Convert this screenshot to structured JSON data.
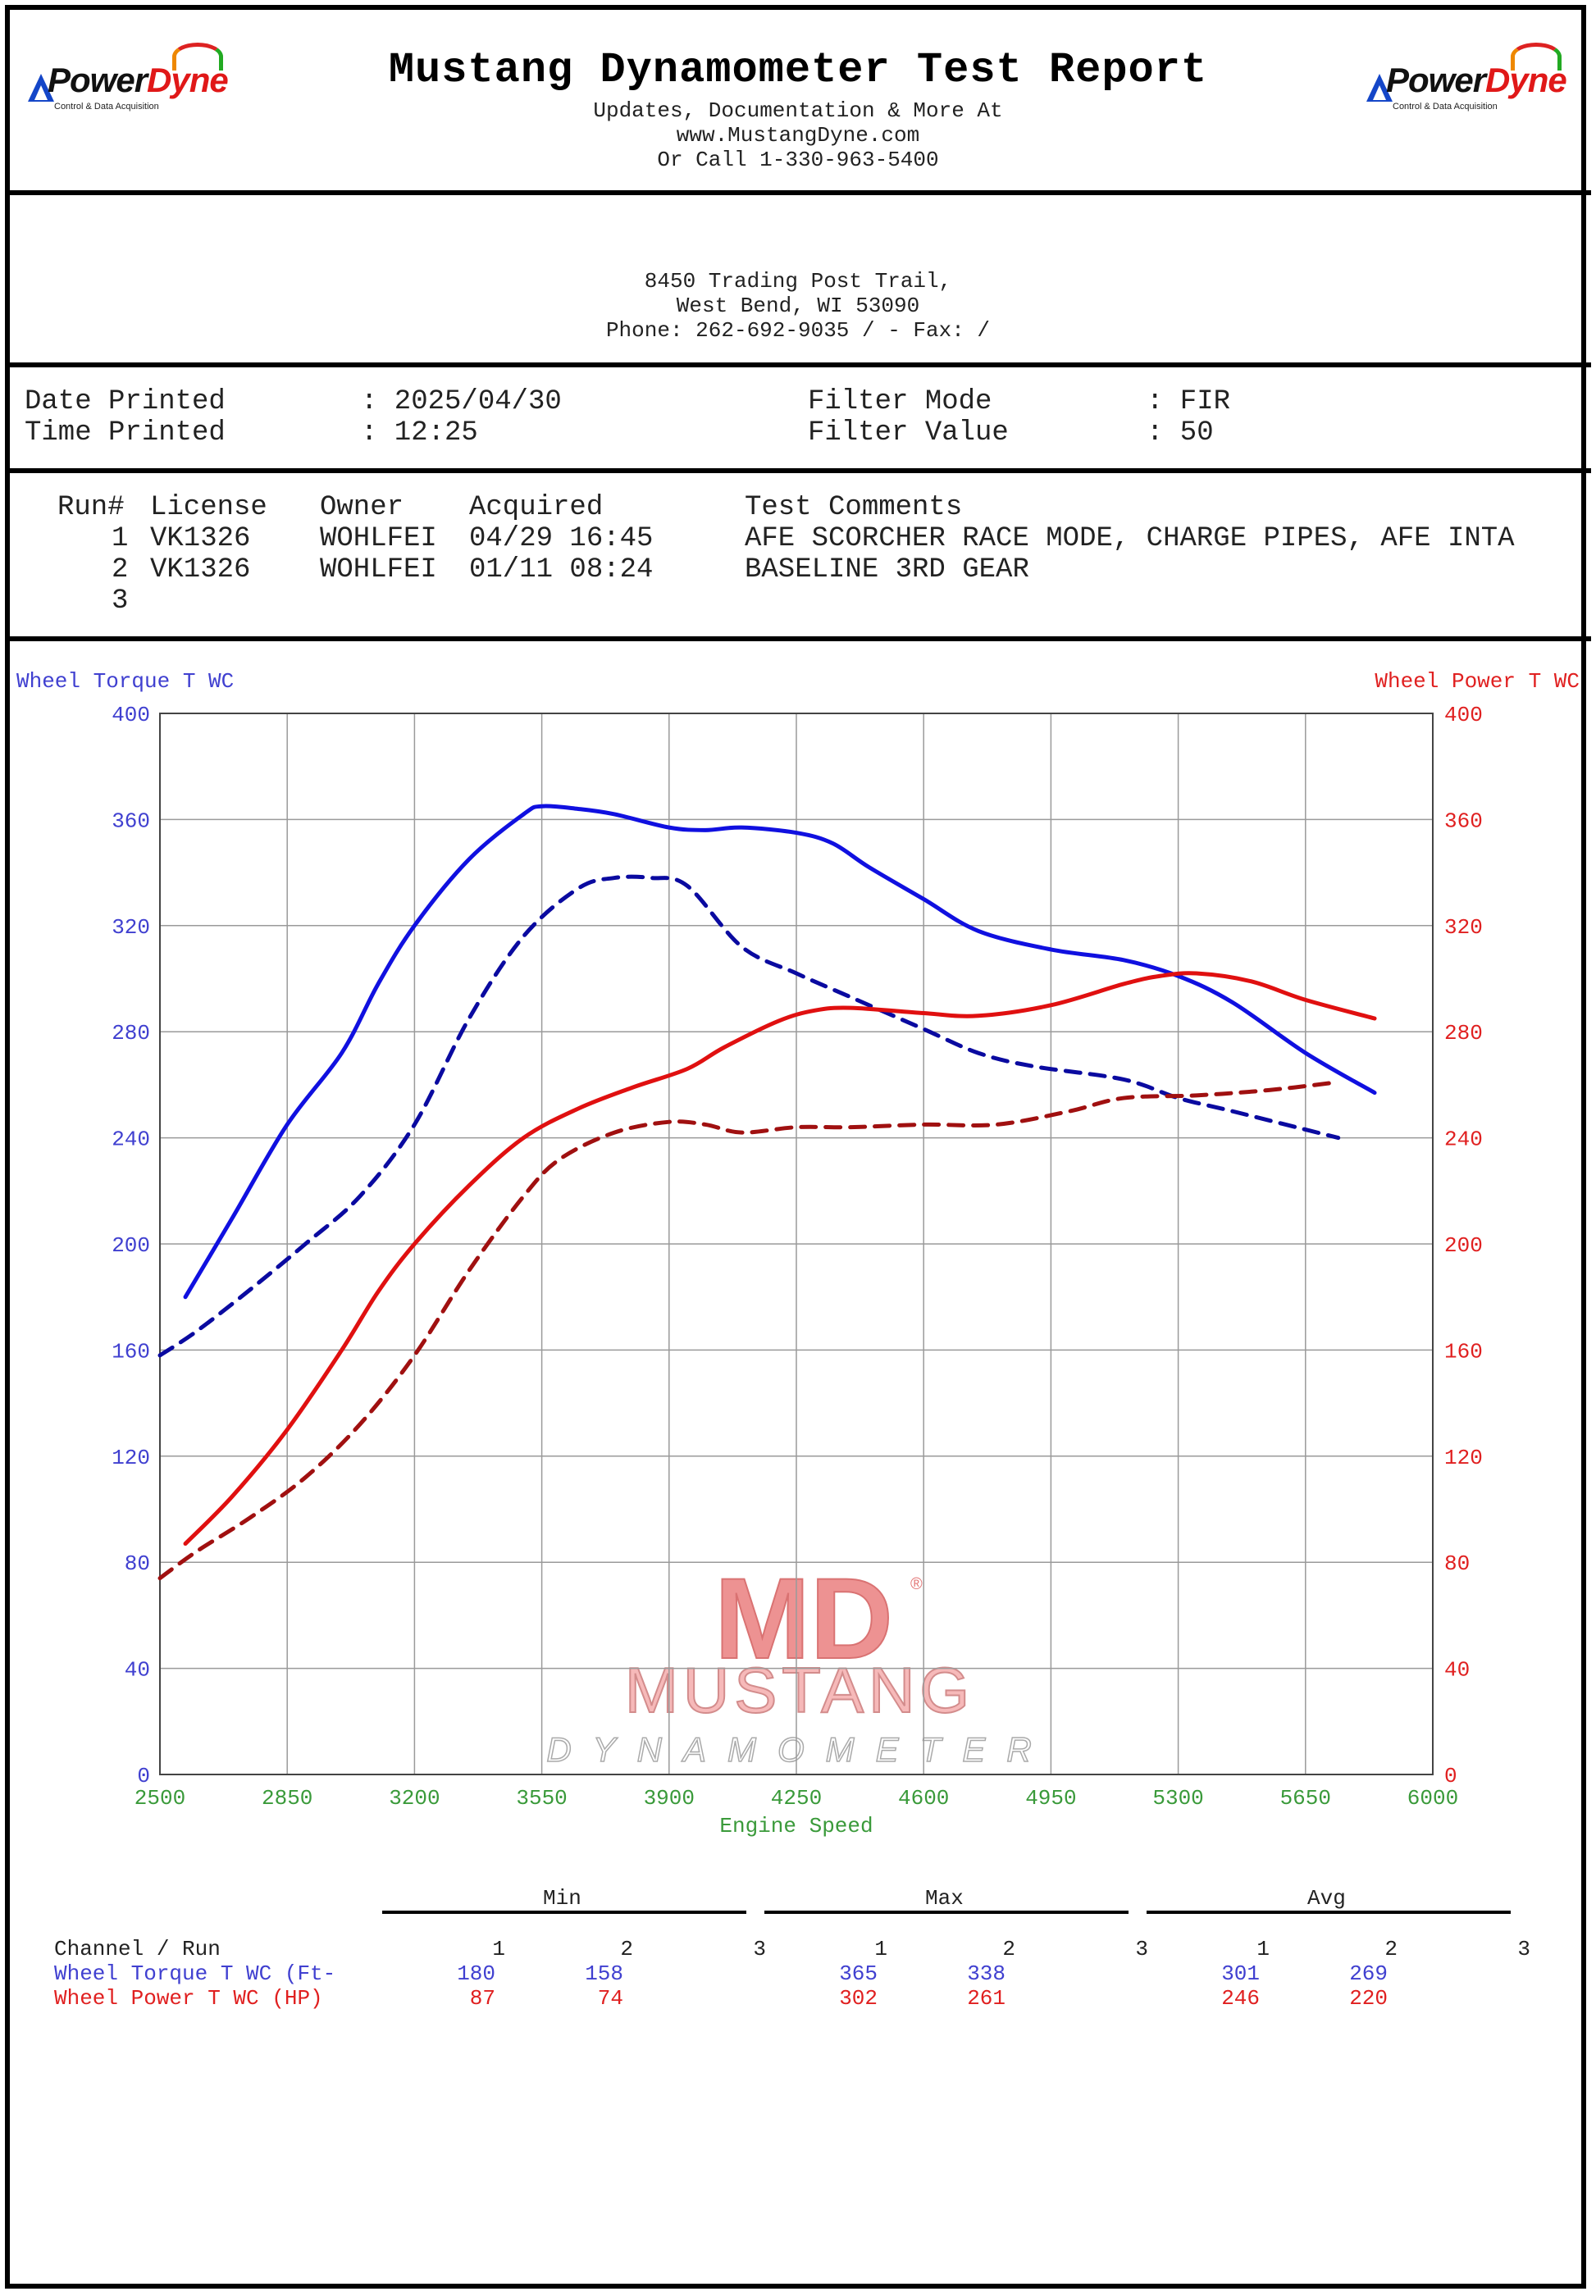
{
  "header": {
    "title": "Mustang Dynamometer Test Report",
    "subtitle_lines": [
      "Updates, Documentation & More At",
      "www.MustangDyne.com",
      "Or Call 1-330-963-5400"
    ],
    "logo": {
      "name_a": "Power",
      "name_b": "Dyne",
      "tagline": "Control & Data Acquisition"
    }
  },
  "address": {
    "line1": "8450 Trading Post Trail,",
    "line2": "West Bend, WI  53090",
    "line3": "Phone: 262-692-9035 /  - Fax:  /"
  },
  "info": {
    "date_label": "Date Printed",
    "date_value": ": 2025/04/30",
    "time_label": "Time Printed",
    "time_value": ": 12:25",
    "filter_mode_label": "Filter Mode",
    "filter_mode_value": ": FIR",
    "filter_value_label": "Filter Value",
    "filter_value_value": ": 50"
  },
  "runs": {
    "headers": {
      "run": "Run#",
      "license": "License",
      "owner": "Owner",
      "acquired": "Acquired",
      "comments": "Test Comments"
    },
    "rows": [
      {
        "run": "1",
        "license": "VK1326",
        "owner": "WOHLFEI",
        "acquired": "04/29 16:45",
        "comments": "AFE SCORCHER RACE MODE, CHARGE PIPES, AFE INTA"
      },
      {
        "run": "2",
        "license": "VK1326",
        "owner": "WOHLFEI",
        "acquired": "01/11 08:24",
        "comments": "BASELINE 3RD GEAR"
      },
      {
        "run": "3",
        "license": "",
        "owner": "",
        "acquired": "",
        "comments": ""
      }
    ]
  },
  "chart_data": {
    "type": "line",
    "xlabel": "Engine Speed",
    "ylabel_left": "Wheel Torque T WC",
    "ylabel_right": "Wheel Power T WC",
    "xlim": [
      2500,
      6000
    ],
    "x_ticks": [
      2500,
      2850,
      3200,
      3550,
      3900,
      4250,
      4600,
      4950,
      5300,
      5650,
      6000
    ],
    "ylim": [
      0,
      400
    ],
    "y_ticks": [
      0,
      40,
      80,
      120,
      160,
      200,
      240,
      280,
      320,
      360,
      400
    ],
    "grid": true,
    "colors": {
      "left_axis": "#4040d0",
      "right_axis": "#e02020",
      "x_axis": "#3a9a3a"
    },
    "series": [
      {
        "name": "Wheel Torque T WC",
        "run": "1",
        "axis": "left",
        "color": "#1010e0",
        "dash": false,
        "x": [
          2570,
          2700,
          2850,
          3000,
          3100,
          3200,
          3350,
          3500,
          3550,
          3650,
          3750,
          3900,
          4000,
          4100,
          4250,
          4350,
          4450,
          4600,
          4750,
          4950,
          5150,
          5300,
          5450,
          5650,
          5840
        ],
        "y": [
          180,
          210,
          245,
          272,
          298,
          320,
          345,
          362,
          365,
          364,
          362,
          357,
          356,
          357,
          355,
          351,
          342,
          330,
          318,
          311,
          307,
          301,
          291,
          272,
          257
        ]
      },
      {
        "name": "Wheel Torque T WC",
        "run": "2",
        "axis": "left",
        "color": "#0a0aa0",
        "dash": true,
        "x": [
          2500,
          2600,
          2750,
          2900,
          3050,
          3200,
          3350,
          3500,
          3650,
          3750,
          3850,
          3950,
          4100,
          4250,
          4400,
          4600,
          4750,
          4900,
          5150,
          5300,
          5450,
          5740
        ],
        "y": [
          158,
          167,
          183,
          200,
          218,
          245,
          285,
          316,
          334,
          338,
          338,
          335,
          312,
          302,
          293,
          281,
          272,
          267,
          262,
          255,
          250,
          240
        ]
      },
      {
        "name": "Wheel Power T WC",
        "run": "1",
        "axis": "right",
        "color": "#e01010",
        "dash": false,
        "x": [
          2570,
          2700,
          2850,
          3000,
          3100,
          3200,
          3350,
          3500,
          3650,
          3800,
          3950,
          4050,
          4200,
          4300,
          4400,
          4600,
          4750,
          4950,
          5150,
          5250,
          5350,
          5500,
          5650,
          5840
        ],
        "y": [
          87,
          105,
          130,
          160,
          182,
          200,
          222,
          240,
          251,
          259,
          266,
          274,
          284,
          288,
          289,
          287,
          286,
          290,
          298,
          301,
          302,
          299,
          292,
          285
        ]
      },
      {
        "name": "Wheel Power T WC",
        "run": "2",
        "axis": "right",
        "color": "#a01010",
        "dash": true,
        "x": [
          2500,
          2600,
          2750,
          2900,
          3050,
          3200,
          3350,
          3500,
          3600,
          3750,
          3900,
          4000,
          4100,
          4250,
          4400,
          4600,
          4800,
          5000,
          5150,
          5350,
          5550,
          5740
        ],
        "y": [
          74,
          84,
          97,
          112,
          132,
          158,
          190,
          218,
          232,
          242,
          246,
          245,
          242,
          244,
          244,
          245,
          245,
          250,
          255,
          256,
          258,
          261
        ]
      }
    ]
  },
  "watermark": {
    "mark": "MD",
    "word1": "MUSTANG",
    "word2": "DYNAMOMETER",
    "reg": "®"
  },
  "stats": {
    "groups": [
      "Min",
      "Max",
      "Avg"
    ],
    "channel_header": "Channel / Run",
    "run_headers": [
      "1",
      "2",
      "3"
    ],
    "rows": [
      {
        "label": "Wheel Torque T WC (Ft-",
        "color": "#4040d0",
        "min": [
          "180",
          "158",
          ""
        ],
        "max": [
          "365",
          "338",
          ""
        ],
        "avg": [
          "301",
          "269",
          ""
        ]
      },
      {
        "label": "Wheel Power T WC (HP)",
        "color": "#e02020",
        "min": [
          "87",
          "74",
          ""
        ],
        "max": [
          "302",
          "261",
          ""
        ],
        "avg": [
          "246",
          "220",
          ""
        ]
      }
    ]
  }
}
